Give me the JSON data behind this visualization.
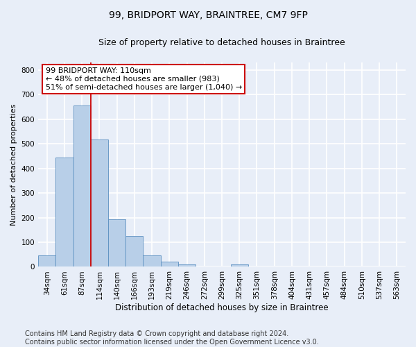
{
  "title": "99, BRIDPORT WAY, BRAINTREE, CM7 9FP",
  "subtitle": "Size of property relative to detached houses in Braintree",
  "xlabel": "Distribution of detached houses by size in Braintree",
  "ylabel": "Number of detached properties",
  "categories": [
    "34sqm",
    "61sqm",
    "87sqm",
    "114sqm",
    "140sqm",
    "166sqm",
    "193sqm",
    "219sqm",
    "246sqm",
    "272sqm",
    "299sqm",
    "325sqm",
    "351sqm",
    "378sqm",
    "404sqm",
    "431sqm",
    "457sqm",
    "484sqm",
    "510sqm",
    "537sqm",
    "563sqm"
  ],
  "bar_heights": [
    47,
    443,
    655,
    516,
    193,
    126,
    47,
    22,
    10,
    0,
    0,
    10,
    0,
    0,
    0,
    0,
    0,
    0,
    0,
    0,
    0
  ],
  "bar_color": "#b8cfe8",
  "bar_edge_color": "#5a8fc0",
  "background_color": "#e8eef8",
  "grid_color": "#ffffff",
  "annotation_line_color": "#cc0000",
  "annotation_box_text": "99 BRIDPORT WAY: 110sqm\n← 48% of detached houses are smaller (983)\n51% of semi-detached houses are larger (1,040) →",
  "ylim": [
    0,
    830
  ],
  "yticks": [
    0,
    100,
    200,
    300,
    400,
    500,
    600,
    700,
    800
  ],
  "footer_line1": "Contains HM Land Registry data © Crown copyright and database right 2024.",
  "footer_line2": "Contains public sector information licensed under the Open Government Licence v3.0.",
  "title_fontsize": 10,
  "subtitle_fontsize": 9,
  "annotation_fontsize": 8,
  "footer_fontsize": 7,
  "ylabel_fontsize": 8,
  "xlabel_fontsize": 8.5,
  "tick_fontsize": 7.5
}
